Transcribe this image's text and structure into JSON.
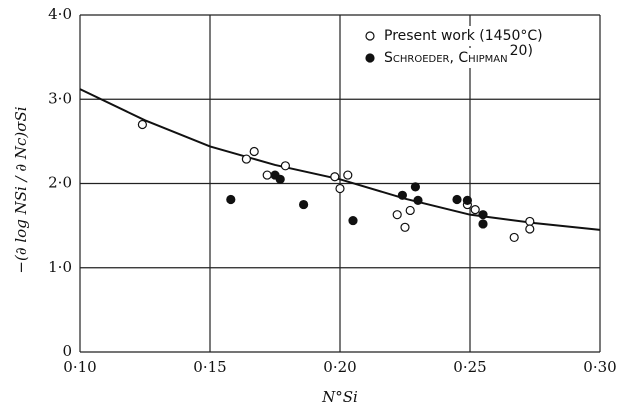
{
  "chart_data": {
    "type": "scatter",
    "xlabel": "N°Si",
    "ylabel": "−(∂ log NSi / ∂ Nc)σSi",
    "xlim": [
      0.1,
      0.3
    ],
    "ylim": [
      0,
      4.0
    ],
    "xticks": [
      {
        "value": 0.1,
        "label": "0·10"
      },
      {
        "value": 0.15,
        "label": "0·15"
      },
      {
        "value": 0.2,
        "label": "0·20"
      },
      {
        "value": 0.25,
        "label": "0·25"
      },
      {
        "value": 0.3,
        "label": "0·30"
      }
    ],
    "yticks": [
      0,
      {
        "value": 1.0,
        "label": "1·0"
      },
      {
        "value": 2.0,
        "label": "2·0"
      },
      {
        "value": 3.0,
        "label": "3·0"
      },
      {
        "value": 4.0,
        "label": "4·0"
      }
    ],
    "grid": true,
    "legend": "upper right",
    "series": [
      {
        "name": "Present work (1450°C)",
        "marker": "open",
        "color": "#111111",
        "x": [
          0.124,
          0.164,
          0.167,
          0.172,
          0.179,
          0.198,
          0.2,
          0.203,
          0.222,
          0.225,
          0.227,
          0.249,
          0.252,
          0.267,
          0.273,
          0.273
        ],
        "values": [
          2.7,
          2.29,
          2.38,
          2.1,
          2.21,
          2.08,
          1.94,
          2.1,
          1.63,
          1.48,
          1.68,
          1.75,
          1.69,
          1.36,
          1.55,
          1.46
        ]
      },
      {
        "name": "Schroeder, Chipman",
        "reference": "20)",
        "marker": "filled",
        "color": "#111111",
        "x": [
          0.158,
          0.175,
          0.177,
          0.186,
          0.205,
          0.224,
          0.229,
          0.23,
          0.245,
          0.249,
          0.255,
          0.255
        ],
        "values": [
          1.81,
          2.1,
          2.05,
          1.75,
          1.56,
          1.86,
          1.96,
          1.8,
          1.81,
          1.8,
          1.63,
          1.52
        ]
      }
    ],
    "curve": {
      "color": "#111111",
      "x": [
        0.1,
        0.125,
        0.15,
        0.175,
        0.2,
        0.225,
        0.25,
        0.275,
        0.3
      ],
      "values": [
        3.12,
        2.75,
        2.44,
        2.22,
        2.05,
        1.82,
        1.63,
        1.53,
        1.45
      ]
    }
  }
}
